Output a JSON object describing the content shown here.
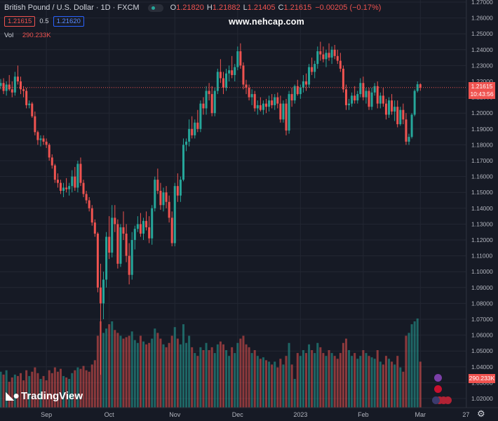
{
  "header": {
    "symbol_title": "British Pound / U.S. Dollar · 1D · FXCM",
    "open_label": "O",
    "open_value": "1.21820",
    "high_label": "H",
    "high_value": "1.21882",
    "low_label": "L",
    "low_value": "1.21405",
    "close_label": "C",
    "close_value": "1.21615",
    "change": "−0.00205 (−0.17%)"
  },
  "quote": {
    "sell": "1.21615",
    "spread": "0.5",
    "buy": "1.21620"
  },
  "volume_label": {
    "name": "Vol",
    "value": "290.233K"
  },
  "watermark": "www.nehcap.com",
  "logo_text": "TradingView",
  "price_axis": {
    "last_price": "1.21615",
    "countdown": "10:43:56",
    "volume_tag": "290.233K"
  },
  "colors": {
    "up": "#26a69a",
    "down": "#ef5350",
    "background": "#161a25",
    "grid": "#232733"
  },
  "chart_data": {
    "type": "candlestick",
    "title": "British Pound / U.S. Dollar · 1D · FXCM",
    "y_ticks": [
      "1.27000",
      "1.26000",
      "1.25000",
      "1.24000",
      "1.23000",
      "1.22000",
      "1.21000",
      "1.20000",
      "1.19000",
      "1.18000",
      "1.17000",
      "1.16000",
      "1.15000",
      "1.14000",
      "1.13000",
      "1.12000",
      "1.11000",
      "1.10000",
      "1.09000",
      "1.08000",
      "1.07000",
      "1.06000",
      "1.05000",
      "1.04000",
      "1.03000",
      "1.02000"
    ],
    "ylim": [
      1.015,
      1.27
    ],
    "x_ticks": [
      {
        "label": "Sep",
        "index": 16
      },
      {
        "label": "Oct",
        "index": 38
      },
      {
        "label": "Nov",
        "index": 61
      },
      {
        "label": "Dec",
        "index": 83
      },
      {
        "label": "2023",
        "index": 105
      },
      {
        "label": "Feb",
        "index": 127
      },
      {
        "label": "Mar",
        "index": 147
      },
      {
        "label": "27",
        "index": 163
      }
    ],
    "ohlc": [
      [
        1.2171,
        1.2215,
        1.215,
        1.219,
        25
      ],
      [
        1.219,
        1.222,
        1.212,
        1.214,
        23
      ],
      [
        1.214,
        1.22,
        1.211,
        1.218,
        26
      ],
      [
        1.218,
        1.224,
        1.214,
        1.215,
        18
      ],
      [
        1.215,
        1.22,
        1.21,
        1.213,
        21
      ],
      [
        1.213,
        1.226,
        1.211,
        1.223,
        23
      ],
      [
        1.223,
        1.23,
        1.218,
        1.22,
        22
      ],
      [
        1.22,
        1.223,
        1.212,
        1.215,
        24
      ],
      [
        1.215,
        1.217,
        1.21,
        1.214,
        19
      ],
      [
        1.214,
        1.216,
        1.203,
        1.205,
        26
      ],
      [
        1.205,
        1.208,
        1.203,
        1.206,
        22
      ],
      [
        1.206,
        1.207,
        1.197,
        1.198,
        25
      ],
      [
        1.198,
        1.201,
        1.186,
        1.188,
        28
      ],
      [
        1.188,
        1.189,
        1.18,
        1.183,
        24
      ],
      [
        1.183,
        1.186,
        1.179,
        1.184,
        20
      ],
      [
        1.184,
        1.186,
        1.18,
        1.182,
        22
      ],
      [
        1.182,
        1.184,
        1.178,
        1.18,
        19
      ],
      [
        1.18,
        1.181,
        1.17,
        1.172,
        26
      ],
      [
        1.172,
        1.174,
        1.165,
        1.167,
        24
      ],
      [
        1.167,
        1.168,
        1.156,
        1.158,
        28
      ],
      [
        1.158,
        1.162,
        1.153,
        1.156,
        25
      ],
      [
        1.156,
        1.158,
        1.149,
        1.151,
        27
      ],
      [
        1.151,
        1.156,
        1.147,
        1.153,
        22
      ],
      [
        1.153,
        1.159,
        1.15,
        1.152,
        21
      ],
      [
        1.152,
        1.156,
        1.148,
        1.154,
        20
      ],
      [
        1.154,
        1.164,
        1.15,
        1.16,
        24
      ],
      [
        1.16,
        1.166,
        1.151,
        1.153,
        26
      ],
      [
        1.153,
        1.17,
        1.15,
        1.168,
        28
      ],
      [
        1.168,
        1.172,
        1.154,
        1.156,
        27
      ],
      [
        1.156,
        1.158,
        1.147,
        1.149,
        29
      ],
      [
        1.149,
        1.151,
        1.143,
        1.145,
        26
      ],
      [
        1.145,
        1.147,
        1.138,
        1.14,
        25
      ],
      [
        1.14,
        1.142,
        1.129,
        1.131,
        30
      ],
      [
        1.131,
        1.133,
        1.122,
        1.124,
        33
      ],
      [
        1.124,
        1.125,
        1.087,
        1.09,
        50
      ],
      [
        1.09,
        1.105,
        1.035,
        1.08,
        60
      ],
      [
        1.08,
        1.1,
        1.07,
        1.095,
        52
      ],
      [
        1.095,
        1.125,
        1.09,
        1.122,
        55
      ],
      [
        1.122,
        1.135,
        1.108,
        1.112,
        58
      ],
      [
        1.112,
        1.142,
        1.109,
        1.134,
        60
      ],
      [
        1.134,
        1.142,
        1.125,
        1.13,
        54
      ],
      [
        1.13,
        1.133,
        1.102,
        1.105,
        52
      ],
      [
        1.105,
        1.13,
        1.103,
        1.128,
        50
      ],
      [
        1.128,
        1.138,
        1.12,
        1.124,
        48
      ],
      [
        1.124,
        1.13,
        1.106,
        1.11,
        49
      ],
      [
        1.11,
        1.118,
        1.092,
        1.098,
        50
      ],
      [
        1.098,
        1.125,
        1.095,
        1.12,
        53
      ],
      [
        1.12,
        1.129,
        1.114,
        1.127,
        47
      ],
      [
        1.127,
        1.135,
        1.125,
        1.13,
        45
      ],
      [
        1.13,
        1.137,
        1.122,
        1.124,
        50
      ],
      [
        1.124,
        1.134,
        1.12,
        1.132,
        46
      ],
      [
        1.132,
        1.138,
        1.126,
        1.128,
        44
      ],
      [
        1.128,
        1.135,
        1.118,
        1.121,
        45
      ],
      [
        1.121,
        1.142,
        1.117,
        1.14,
        48
      ],
      [
        1.14,
        1.16,
        1.138,
        1.158,
        55
      ],
      [
        1.158,
        1.165,
        1.149,
        1.151,
        52
      ],
      [
        1.151,
        1.156,
        1.139,
        1.142,
        48
      ],
      [
        1.142,
        1.153,
        1.138,
        1.15,
        44
      ],
      [
        1.15,
        1.154,
        1.14,
        1.144,
        42
      ],
      [
        1.144,
        1.148,
        1.131,
        1.134,
        45
      ],
      [
        1.134,
        1.138,
        1.116,
        1.118,
        50
      ],
      [
        1.118,
        1.156,
        1.116,
        1.154,
        56
      ],
      [
        1.154,
        1.162,
        1.144,
        1.148,
        48
      ],
      [
        1.148,
        1.16,
        1.144,
        1.158,
        44
      ],
      [
        1.158,
        1.184,
        1.157,
        1.18,
        58
      ],
      [
        1.18,
        1.184,
        1.176,
        1.182,
        45
      ],
      [
        1.182,
        1.196,
        1.179,
        1.19,
        50
      ],
      [
        1.19,
        1.198,
        1.184,
        1.186,
        42
      ],
      [
        1.186,
        1.196,
        1.184,
        1.194,
        38
      ],
      [
        1.194,
        1.202,
        1.188,
        1.19,
        36
      ],
      [
        1.19,
        1.208,
        1.188,
        1.206,
        42
      ],
      [
        1.206,
        1.21,
        1.199,
        1.203,
        40
      ],
      [
        1.203,
        1.217,
        1.199,
        1.214,
        45
      ],
      [
        1.214,
        1.219,
        1.208,
        1.212,
        40
      ],
      [
        1.212,
        1.217,
        1.198,
        1.2,
        42
      ],
      [
        1.2,
        1.216,
        1.198,
        1.214,
        38
      ],
      [
        1.214,
        1.228,
        1.212,
        1.226,
        44
      ],
      [
        1.226,
        1.234,
        1.219,
        1.222,
        46
      ],
      [
        1.222,
        1.226,
        1.212,
        1.216,
        44
      ],
      [
        1.216,
        1.228,
        1.214,
        1.225,
        40
      ],
      [
        1.225,
        1.23,
        1.22,
        1.227,
        36
      ],
      [
        1.227,
        1.236,
        1.222,
        1.224,
        42
      ],
      [
        1.224,
        1.231,
        1.22,
        1.229,
        38
      ],
      [
        1.229,
        1.242,
        1.227,
        1.239,
        45
      ],
      [
        1.239,
        1.244,
        1.228,
        1.23,
        48
      ],
      [
        1.23,
        1.232,
        1.215,
        1.218,
        50
      ],
      [
        1.218,
        1.221,
        1.212,
        1.216,
        44
      ],
      [
        1.216,
        1.218,
        1.208,
        1.21,
        42
      ],
      [
        1.21,
        1.215,
        1.205,
        1.212,
        38
      ],
      [
        1.212,
        1.214,
        1.201,
        1.203,
        40
      ],
      [
        1.203,
        1.208,
        1.199,
        1.205,
        36
      ],
      [
        1.205,
        1.21,
        1.201,
        1.202,
        34
      ],
      [
        1.202,
        1.208,
        1.199,
        1.206,
        35
      ],
      [
        1.206,
        1.209,
        1.2,
        1.204,
        33
      ],
      [
        1.204,
        1.211,
        1.201,
        1.208,
        32
      ],
      [
        1.208,
        1.212,
        1.203,
        1.205,
        30
      ],
      [
        1.205,
        1.212,
        1.202,
        1.21,
        32
      ],
      [
        1.21,
        1.213,
        1.203,
        1.206,
        28
      ],
      [
        1.206,
        1.211,
        1.194,
        1.196,
        34
      ],
      [
        1.196,
        1.208,
        1.194,
        1.206,
        30
      ],
      [
        1.206,
        1.209,
        1.186,
        1.189,
        36
      ],
      [
        1.189,
        1.214,
        1.187,
        1.212,
        45
      ],
      [
        1.212,
        1.216,
        1.204,
        1.208,
        30
      ],
      [
        1.208,
        1.218,
        1.206,
        1.217,
        20
      ],
      [
        1.217,
        1.221,
        1.211,
        1.212,
        38
      ],
      [
        1.212,
        1.218,
        1.209,
        1.216,
        36
      ],
      [
        1.216,
        1.224,
        1.213,
        1.22,
        40
      ],
      [
        1.22,
        1.225,
        1.214,
        1.218,
        38
      ],
      [
        1.218,
        1.231,
        1.216,
        1.229,
        44
      ],
      [
        1.229,
        1.235,
        1.224,
        1.226,
        40
      ],
      [
        1.226,
        1.233,
        1.222,
        1.231,
        38
      ],
      [
        1.231,
        1.242,
        1.228,
        1.239,
        45
      ],
      [
        1.239,
        1.245,
        1.233,
        1.237,
        42
      ],
      [
        1.237,
        1.242,
        1.232,
        1.234,
        38
      ],
      [
        1.234,
        1.24,
        1.229,
        1.238,
        36
      ],
      [
        1.238,
        1.244,
        1.233,
        1.235,
        40
      ],
      [
        1.235,
        1.242,
        1.231,
        1.24,
        38
      ],
      [
        1.24,
        1.243,
        1.234,
        1.236,
        36
      ],
      [
        1.236,
        1.24,
        1.231,
        1.233,
        34
      ],
      [
        1.233,
        1.238,
        1.226,
        1.228,
        38
      ],
      [
        1.228,
        1.23,
        1.213,
        1.215,
        45
      ],
      [
        1.215,
        1.218,
        1.202,
        1.205,
        48
      ],
      [
        1.205,
        1.209,
        1.202,
        1.206,
        40
      ],
      [
        1.206,
        1.213,
        1.204,
        1.211,
        36
      ],
      [
        1.211,
        1.217,
        1.206,
        1.208,
        38
      ],
      [
        1.208,
        1.214,
        1.206,
        1.212,
        34
      ],
      [
        1.212,
        1.222,
        1.21,
        1.219,
        36
      ],
      [
        1.219,
        1.223,
        1.208,
        1.21,
        40
      ],
      [
        1.21,
        1.216,
        1.206,
        1.214,
        38
      ],
      [
        1.214,
        1.216,
        1.202,
        1.204,
        36
      ],
      [
        1.204,
        1.216,
        1.202,
        1.213,
        35
      ],
      [
        1.213,
        1.219,
        1.211,
        1.217,
        34
      ],
      [
        1.217,
        1.22,
        1.203,
        1.206,
        40
      ],
      [
        1.206,
        1.213,
        1.203,
        1.211,
        32
      ],
      [
        1.211,
        1.216,
        1.204,
        1.206,
        30
      ],
      [
        1.206,
        1.209,
        1.196,
        1.199,
        36
      ],
      [
        1.199,
        1.21,
        1.197,
        1.208,
        34
      ],
      [
        1.208,
        1.212,
        1.199,
        1.201,
        32
      ],
      [
        1.201,
        1.208,
        1.195,
        1.204,
        30
      ],
      [
        1.204,
        1.208,
        1.191,
        1.193,
        36
      ],
      [
        1.193,
        1.204,
        1.192,
        1.202,
        28
      ],
      [
        1.202,
        1.206,
        1.193,
        1.196,
        25
      ],
      [
        1.196,
        1.2,
        1.18,
        1.182,
        50
      ],
      [
        1.182,
        1.187,
        1.18,
        1.185,
        52
      ],
      [
        1.185,
        1.2,
        1.184,
        1.199,
        58
      ],
      [
        1.199,
        1.215,
        1.198,
        1.214,
        60
      ],
      [
        1.214,
        1.22,
        1.213,
        1.2182,
        62
      ],
      [
        1.2182,
        1.2188,
        1.2141,
        1.2161,
        32
      ]
    ]
  }
}
